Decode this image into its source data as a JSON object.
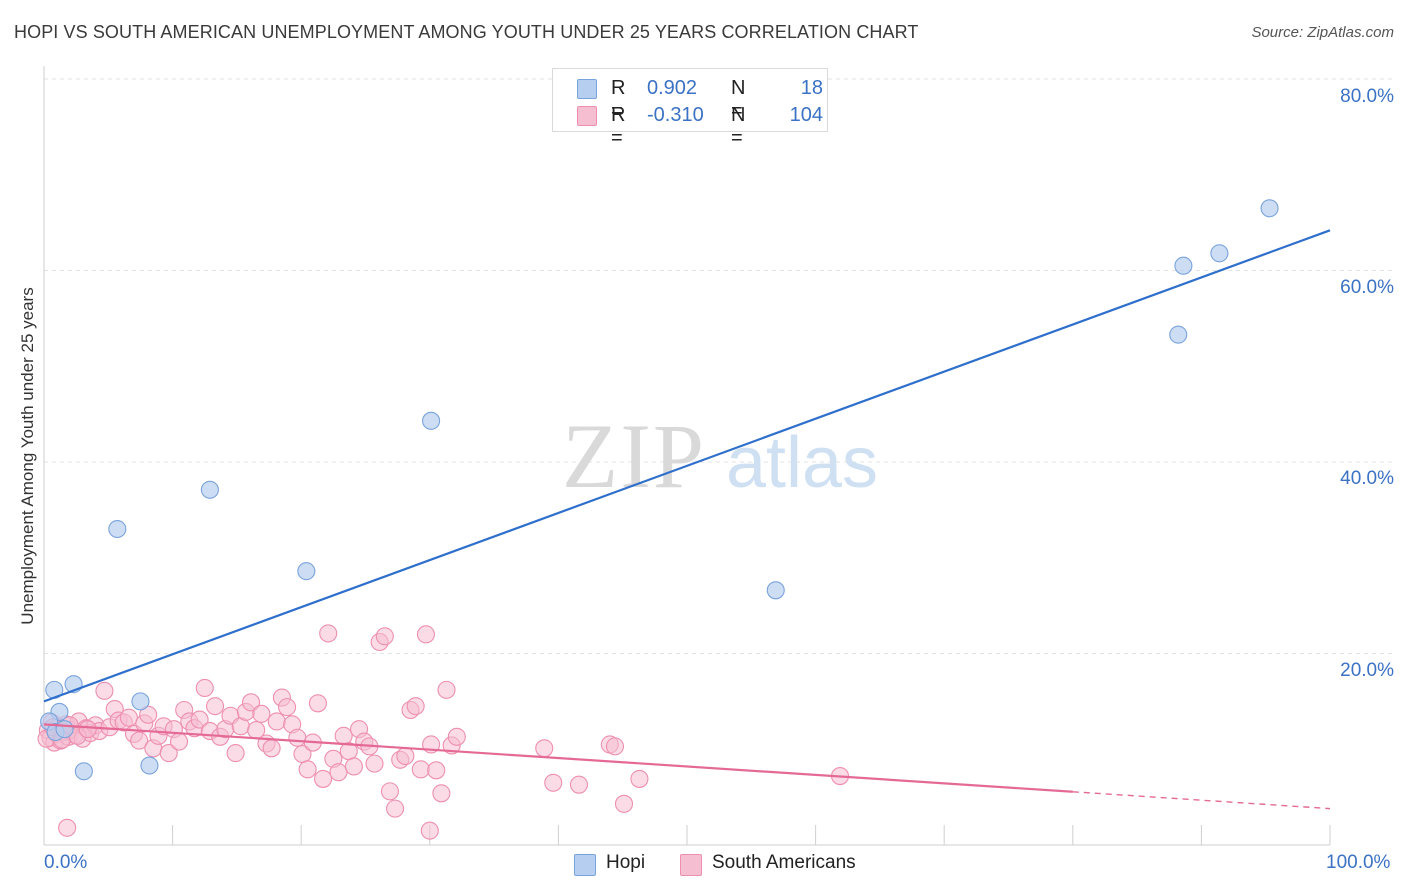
{
  "header": {
    "title": "HOPI VS SOUTH AMERICAN UNEMPLOYMENT AMONG YOUTH UNDER 25 YEARS CORRELATION CHART",
    "source": "Source: ZipAtlas.com"
  },
  "watermark": {
    "zip": "ZIP",
    "atlas": "atlas"
  },
  "legend": {
    "r_label": "R =",
    "n_label": "N =",
    "series": [
      {
        "name": "Hopi",
        "r": "0.902",
        "n": "18"
      },
      {
        "name": "South Americans",
        "r": "-0.310",
        "n": "104"
      }
    ]
  },
  "colors": {
    "hopi_fill": "#b6cff0",
    "hopi_stroke": "#7aa3dc",
    "hopi_line": "#2f6fcc",
    "sa_fill": "#f6bed1",
    "sa_stroke": "#ee8fb0",
    "sa_line": "#e46a95",
    "tick_label": "#3b72c4",
    "grid": "#e3e3e3"
  },
  "chart_data": {
    "type": "scatter",
    "title": "HOPI VS SOUTH AMERICAN UNEMPLOYMENT AMONG YOUTH UNDER 25 YEARS CORRELATION CHART",
    "xlabel": "",
    "ylabel": "Unemployment Among Youth under 25 years",
    "xlim": [
      0,
      100
    ],
    "ylim": [
      0,
      80
    ],
    "x_tick_labels": [
      "0.0%",
      "100.0%"
    ],
    "y_ticks": [
      20,
      40,
      60,
      80
    ],
    "y_tick_labels": [
      "20.0%",
      "40.0%",
      "60.0%",
      "80.0%"
    ],
    "grid": "horizontal dashed",
    "legend_position": "top-center",
    "series": [
      {
        "name": "Hopi",
        "points": [
          [
            0.8,
            16.2
          ],
          [
            1.2,
            13.9
          ],
          [
            2.3,
            16.8
          ],
          [
            3.1,
            7.7
          ],
          [
            5.7,
            33.0
          ],
          [
            7.5,
            15.0
          ],
          [
            8.2,
            8.3
          ],
          [
            12.9,
            37.1
          ],
          [
            20.4,
            28.6
          ],
          [
            30.1,
            44.3
          ],
          [
            56.9,
            26.6
          ],
          [
            88.2,
            53.3
          ],
          [
            88.6,
            60.5
          ],
          [
            91.4,
            61.8
          ],
          [
            95.3,
            66.5
          ],
          [
            0.4,
            12.9
          ],
          [
            0.9,
            11.8
          ],
          [
            1.6,
            12.1
          ]
        ],
        "trend": {
          "x": [
            0,
            100
          ],
          "y": [
            15.0,
            64.2
          ]
        }
      },
      {
        "name": "South Americans",
        "points": [
          [
            0.3,
            12.0
          ],
          [
            0.5,
            11.2
          ],
          [
            0.6,
            12.8
          ],
          [
            0.8,
            10.7
          ],
          [
            1.0,
            11.6
          ],
          [
            1.1,
            12.4
          ],
          [
            1.3,
            10.9
          ],
          [
            1.5,
            11.8
          ],
          [
            1.7,
            12.6
          ],
          [
            1.9,
            11.3
          ],
          [
            2.1,
            12.0
          ],
          [
            2.4,
            11.5
          ],
          [
            2.7,
            12.9
          ],
          [
            3.0,
            11.1
          ],
          [
            3.3,
            12.2
          ],
          [
            3.6,
            11.7
          ],
          [
            4.0,
            12.5
          ],
          [
            4.3,
            11.9
          ],
          [
            4.7,
            16.1
          ],
          [
            5.1,
            12.3
          ],
          [
            5.5,
            14.2
          ],
          [
            5.8,
            13.0
          ],
          [
            6.2,
            12.8
          ],
          [
            6.6,
            13.3
          ],
          [
            7.0,
            11.6
          ],
          [
            7.4,
            10.9
          ],
          [
            7.8,
            12.7
          ],
          [
            8.1,
            13.6
          ],
          [
            8.5,
            10.1
          ],
          [
            8.9,
            11.4
          ],
          [
            9.3,
            12.4
          ],
          [
            9.7,
            9.6
          ],
          [
            10.1,
            12.1
          ],
          [
            10.5,
            10.8
          ],
          [
            10.9,
            14.1
          ],
          [
            11.3,
            12.9
          ],
          [
            11.7,
            12.2
          ],
          [
            12.1,
            13.1
          ],
          [
            12.5,
            16.4
          ],
          [
            12.9,
            11.9
          ],
          [
            13.3,
            14.5
          ],
          [
            13.7,
            11.3
          ],
          [
            14.1,
            12.1
          ],
          [
            14.5,
            13.5
          ],
          [
            14.9,
            9.6
          ],
          [
            15.3,
            12.4
          ],
          [
            15.7,
            13.9
          ],
          [
            16.1,
            14.9
          ],
          [
            16.5,
            12.0
          ],
          [
            16.9,
            13.7
          ],
          [
            17.3,
            10.6
          ],
          [
            17.7,
            10.1
          ],
          [
            18.1,
            12.9
          ],
          [
            18.5,
            15.4
          ],
          [
            18.9,
            14.4
          ],
          [
            19.3,
            12.6
          ],
          [
            19.7,
            11.2
          ],
          [
            20.1,
            9.5
          ],
          [
            20.5,
            7.9
          ],
          [
            20.9,
            10.7
          ],
          [
            21.3,
            14.8
          ],
          [
            21.7,
            6.9
          ],
          [
            22.1,
            22.1
          ],
          [
            22.5,
            9.0
          ],
          [
            22.9,
            7.6
          ],
          [
            23.3,
            11.4
          ],
          [
            23.7,
            9.8
          ],
          [
            24.1,
            8.2
          ],
          [
            24.5,
            12.1
          ],
          [
            24.9,
            10.8
          ],
          [
            25.3,
            10.3
          ],
          [
            25.7,
            8.5
          ],
          [
            26.1,
            21.2
          ],
          [
            26.5,
            21.8
          ],
          [
            26.9,
            5.6
          ],
          [
            27.3,
            3.8
          ],
          [
            27.7,
            8.9
          ],
          [
            28.1,
            9.3
          ],
          [
            28.5,
            14.1
          ],
          [
            28.9,
            14.5
          ],
          [
            29.3,
            7.9
          ],
          [
            29.7,
            22.0
          ],
          [
            30.1,
            10.5
          ],
          [
            30.5,
            7.8
          ],
          [
            30.9,
            5.4
          ],
          [
            31.3,
            16.2
          ],
          [
            31.7,
            10.4
          ],
          [
            32.1,
            11.3
          ],
          [
            38.9,
            10.1
          ],
          [
            39.6,
            6.5
          ],
          [
            41.6,
            6.3
          ],
          [
            44.0,
            10.5
          ],
          [
            44.4,
            10.3
          ],
          [
            45.1,
            4.3
          ],
          [
            46.3,
            6.9
          ],
          [
            61.9,
            7.2
          ],
          [
            1.8,
            1.8
          ],
          [
            30.0,
            1.5
          ],
          [
            0.2,
            11.1
          ],
          [
            0.7,
            12.3
          ],
          [
            1.4,
            11.0
          ],
          [
            2.0,
            12.5
          ],
          [
            2.6,
            11.4
          ],
          [
            3.4,
            12.1
          ]
        ],
        "trend": {
          "x": [
            0,
            100
          ],
          "y": [
            12.6,
            3.8
          ],
          "solid_until_x": 80
        }
      }
    ]
  }
}
